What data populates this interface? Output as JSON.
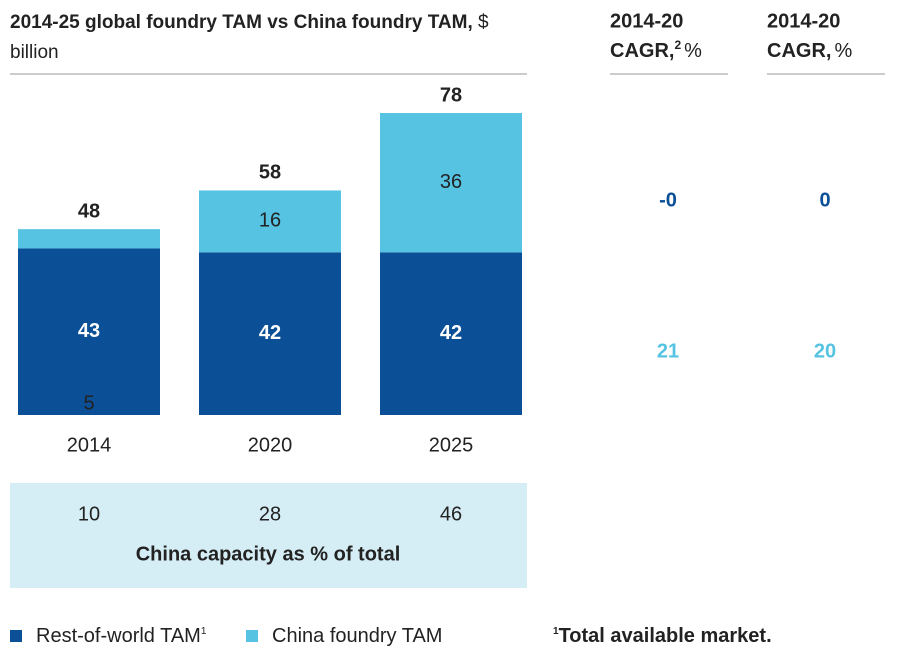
{
  "chart_data": {
    "type": "stacked_bar",
    "title": "2014-25 global foundry TAM vs China foundry TAM,",
    "units": "$ billion",
    "categories": [
      "2014",
      "2020",
      "2025"
    ],
    "series": [
      {
        "name": "Rest-of-world TAM",
        "note": "1",
        "color": "#0b4f96",
        "values": [
          43,
          42,
          42
        ]
      },
      {
        "name": "China foundry TAM",
        "color": "#56c3e2",
        "values": [
          5,
          16,
          36
        ]
      }
    ],
    "totals": [
      48,
      58,
      78
    ],
    "capacity": {
      "label": "China capacity as % of total",
      "values": [
        10,
        28,
        46
      ],
      "color": "#d5edf4"
    },
    "cagr_columns": [
      {
        "header": "2014-20",
        "subheader": "CAGR,",
        "note": "2",
        "unit": "%",
        "values": [
          0,
          21
        ],
        "value_labels": [
          "-0",
          "21"
        ]
      },
      {
        "header": "2014-20",
        "subheader": "CAGR,",
        "unit": "%",
        "values": [
          0,
          20
        ]
      }
    ],
    "footnote": {
      "note": "1",
      "text": "Total available market."
    }
  }
}
